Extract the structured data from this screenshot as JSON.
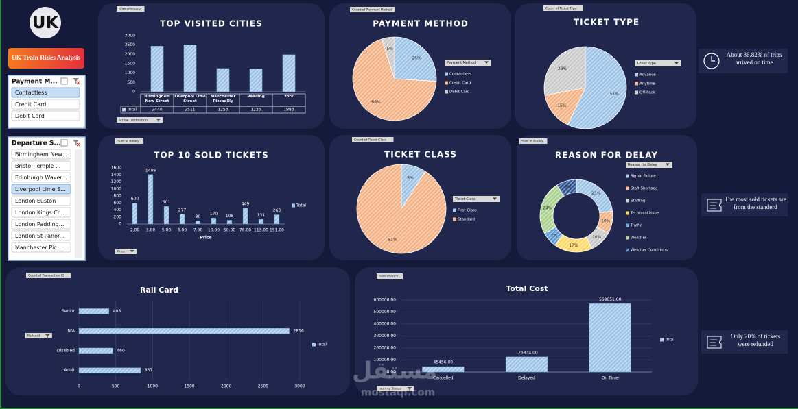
{
  "logo": "UK",
  "button": "UK Train Rides Analysis",
  "slicers": [
    {
      "title": "Payment M...",
      "items": [
        "Contactless",
        "Credit Card",
        "Debit Card"
      ],
      "selected": [
        0
      ]
    },
    {
      "title": "Departure S...",
      "items": [
        "Birmingham New...",
        "Bristol Temple ...",
        "Edinburgh Waver...",
        "Liverpool Lime S...",
        "London Euston",
        "London Kings Cr...",
        "London Padding...",
        "London St Panor...",
        "Manchester Pic..."
      ],
      "selected": [
        3
      ]
    }
  ],
  "insights": [
    "About 86.82% of trips arrived on time",
    "The most sold tickets are from the standerd",
    "Only 20% of tickets were refunded"
  ],
  "watermark": [
    "مستقل",
    "mostaql.com"
  ],
  "chart_data": [
    {
      "type": "bar",
      "title": "TOP VISITED CITIES",
      "field": "Sum of Binary",
      "filter": "Arrival Destination",
      "table": true,
      "categories": [
        "Birmingham New Street",
        "Liverpool Lime Street",
        "Manchester Piccadilly",
        "Reading",
        "York"
      ],
      "series": [
        {
          "name": "Total",
          "color": "#9dc3e6",
          "values": [
            2440,
            2511,
            1253,
            1235,
            1983
          ]
        }
      ],
      "ylim": [
        0,
        3000
      ],
      "yticks": [
        0,
        500,
        1000,
        1500,
        2000,
        2500,
        3000
      ]
    },
    {
      "type": "pie",
      "title": "PAYMENT METHOD",
      "field": "Count of Payment Method",
      "legend_title": "Payment Method",
      "categories": [
        "Contactless",
        "Credit Card",
        "Debit Card"
      ],
      "values": [
        26,
        69,
        5
      ],
      "value_labels": [
        "26%",
        "69%",
        "5%"
      ],
      "colors": [
        "#9dc3e6",
        "#f4b183",
        "#c9c9c9"
      ]
    },
    {
      "type": "pie",
      "title": "TICKET TYPE",
      "field": "Count of Ticket Type",
      "legend_title": "Ticket Type",
      "categories": [
        "Advance",
        "Anytime",
        "Off-Peak"
      ],
      "values": [
        57,
        15,
        28
      ],
      "value_labels": [
        "57%",
        "15%",
        "28%"
      ],
      "colors": [
        "#9dc3e6",
        "#f4b183",
        "#c9c9c9"
      ]
    },
    {
      "type": "bar",
      "title": "TOP 10 SOLD TICKETS",
      "field": "Sum of Binary",
      "filter": "Price",
      "x_label": "Price",
      "legend": "right",
      "data_labels": true,
      "categories": [
        "2.00",
        "3.00",
        "5.00",
        "6.00",
        "7.00",
        "10.00",
        "50.00",
        "76.00",
        "113.00",
        "151.00"
      ],
      "series": [
        {
          "name": "Total",
          "color": "#9dc3e6",
          "values": [
            600,
            1409,
            501,
            277,
            90,
            170,
            108,
            449,
            131,
            263
          ]
        }
      ],
      "ylim": [
        0,
        1600
      ],
      "yticks": [
        0,
        200,
        400,
        600,
        800,
        1000,
        1200,
        1400,
        1600
      ]
    },
    {
      "type": "pie",
      "title": "TICKET CLASS",
      "field": "Count of Ticket Class",
      "legend_title": "Ticket Class",
      "categories": [
        "First Class",
        "Standard"
      ],
      "values": [
        9,
        91
      ],
      "value_labels": [
        "9%",
        "91%"
      ],
      "colors": [
        "#9dc3e6",
        "#f4b183"
      ]
    },
    {
      "type": "donut",
      "title": "REASON FOR DELAY",
      "field": "Sum of Binary",
      "legend_title": "Reason for Delay",
      "categories": [
        "Signal Failure",
        "Staff Shortage",
        "Staffing",
        "Technical Issue",
        "Traffic",
        "Weather",
        "Weather Conditions"
      ],
      "values": [
        23,
        10,
        10,
        17,
        7,
        24,
        9
      ],
      "value_labels": [
        "23%",
        "10%",
        "10%",
        "17%",
        "7%",
        "24%",
        "9%"
      ],
      "colors": [
        "#9dc3e6",
        "#f4b183",
        "#c9c9c9",
        "#ffd966",
        "#5b9bd5",
        "#a9d18e",
        "#2f5597"
      ]
    },
    {
      "type": "hbar",
      "title": "Rail Card",
      "field": "Count of Transaction ID",
      "filter": "Railcard",
      "legend": "right",
      "grid": true,
      "data_labels": true,
      "categories": [
        "Senior",
        "N/A",
        "Disabled",
        "Adult"
      ],
      "series": [
        {
          "name": "Total",
          "color": "#9dc3e6",
          "values": [
            408,
            2856,
            460,
            837
          ]
        }
      ],
      "xlim": [
        0,
        3000
      ],
      "xticks": [
        0,
        500,
        1000,
        1500,
        2000,
        2500,
        3000
      ]
    },
    {
      "type": "bar",
      "title": "Total Cost",
      "field": "Sum of Price",
      "filter": "Journey Status",
      "legend": "right",
      "grid": true,
      "categories": [
        "Cancelled",
        "Delayed",
        "On Time"
      ],
      "series": [
        {
          "name": "Total",
          "color": "#9dc3e6",
          "values": [
            45456,
            126834,
            569651
          ],
          "value_labels": [
            "45456.00",
            "126834.00",
            "569651.00"
          ]
        }
      ],
      "ylim": [
        0,
        600000
      ],
      "yticks": [
        {
          "value": 0,
          "label": "0.00"
        },
        {
          "value": 100000,
          "label": "100000.00"
        },
        {
          "value": 200000,
          "label": "200000.00"
        },
        {
          "value": 300000,
          "label": "300000.00"
        },
        {
          "value": 400000,
          "label": "400000.00"
        },
        {
          "value": 500000,
          "label": "500000.00"
        },
        {
          "value": 600000,
          "label": "600000.00"
        }
      ]
    }
  ]
}
